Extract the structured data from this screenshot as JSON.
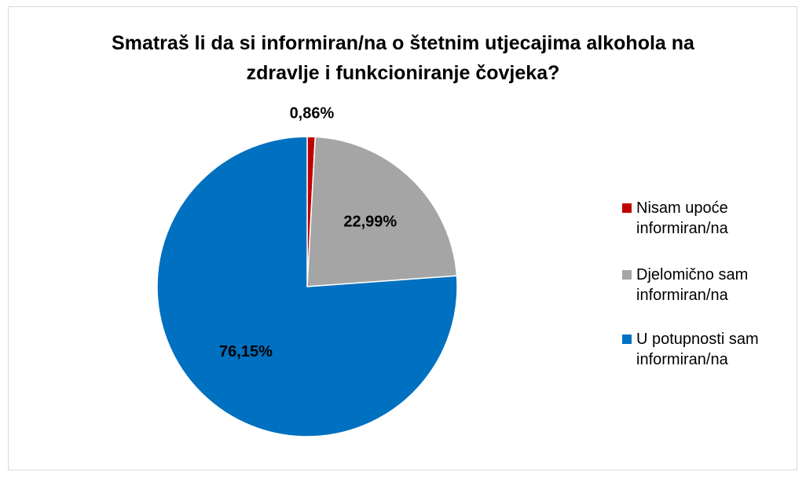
{
  "chart_data": {
    "type": "pie",
    "title": "Smatraš li da si informiran/na o štetnim utjecajima alkohola na zdravlje i funkcioniranje čovjeka?",
    "categories": [
      "Nisam upoće informiran/na",
      "Djelomično sam informiran/na",
      "U potupnosti sam informiran/na"
    ],
    "values": [
      0.86,
      22.99,
      76.15
    ],
    "value_labels": [
      "0,86%",
      "22,99%",
      "76,15%"
    ],
    "colors": [
      "#c00000",
      "#a5a5a5",
      "#0070c0"
    ],
    "legend": "right"
  }
}
